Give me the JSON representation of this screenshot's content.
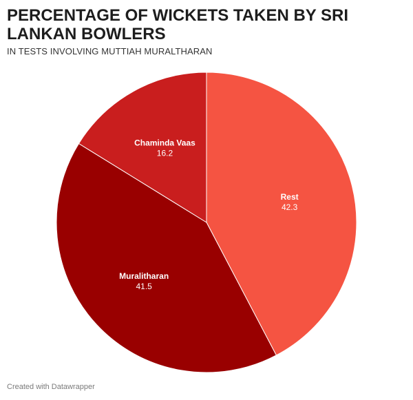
{
  "header": {
    "title": "PERCENTAGE OF WICKETS TAKEN BY SRI LANKAN BOWLERS",
    "subtitle": "IN TESTS INVOLVING MUTTIAH MURALTHARAN"
  },
  "footer": {
    "credit": "Created with Datawrapper"
  },
  "chart_data": {
    "type": "pie",
    "title": "PERCENTAGE OF WICKETS TAKEN BY SRI LANKAN BOWLERS",
    "subtitle": "IN TESTS INVOLVING MUTTIAH MURALTHARAN",
    "slices": [
      {
        "label": "Rest",
        "value": 42.3,
        "display": "42.3",
        "color": "#f55442"
      },
      {
        "label": "Muralitharan",
        "value": 41.5,
        "display": "41.5",
        "color": "#990000"
      },
      {
        "label": "Chaminda Vaas",
        "value": 16.2,
        "display": "16.2",
        "color": "#c91e1e"
      }
    ],
    "start": "12 o'clock",
    "direction": "clockwise",
    "label_color": "#ffffff",
    "legend": "none"
  }
}
